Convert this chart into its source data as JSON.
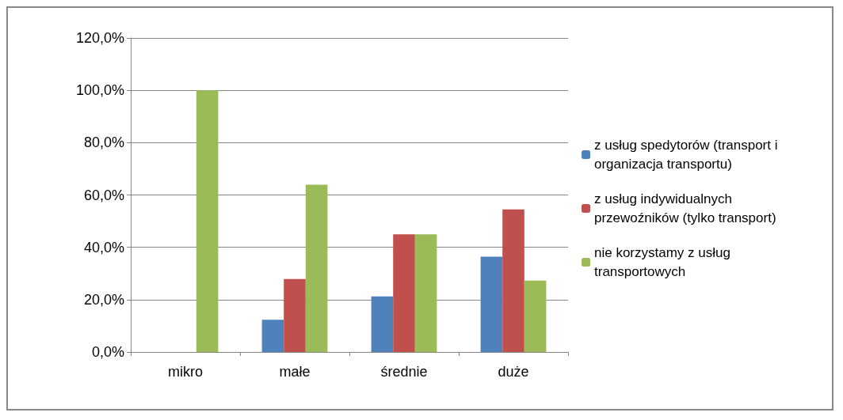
{
  "chart_data": {
    "type": "bar",
    "categories": [
      "mikro",
      "małe",
      "średnie",
      "duże"
    ],
    "series": [
      {
        "name": "z usług spedytorów (transport i organizacja transportu)",
        "color": "#4f81bd",
        "values": [
          0,
          12.3,
          21.2,
          36.4
        ]
      },
      {
        "name": "z usług indywidualnych przewoźników (tylko transport)",
        "color": "#c0504d",
        "values": [
          0,
          27.9,
          45.0,
          54.5
        ]
      },
      {
        "name": "nie korzystamy z usług transportowych",
        "color": "#9bbb59",
        "values": [
          100,
          63.9,
          45.0,
          27.3
        ]
      }
    ],
    "ylim": [
      0,
      120
    ],
    "yticks": [
      {
        "value": 0,
        "label": "0,0%"
      },
      {
        "value": 20,
        "label": "20,0%"
      },
      {
        "value": 40,
        "label": "40,0%"
      },
      {
        "value": 60,
        "label": "60,0%"
      },
      {
        "value": 80,
        "label": "80,0%"
      },
      {
        "value": 100,
        "label": "100,0%"
      },
      {
        "value": 120,
        "label": "120,0%"
      }
    ],
    "grid": "y",
    "legend": "right"
  }
}
